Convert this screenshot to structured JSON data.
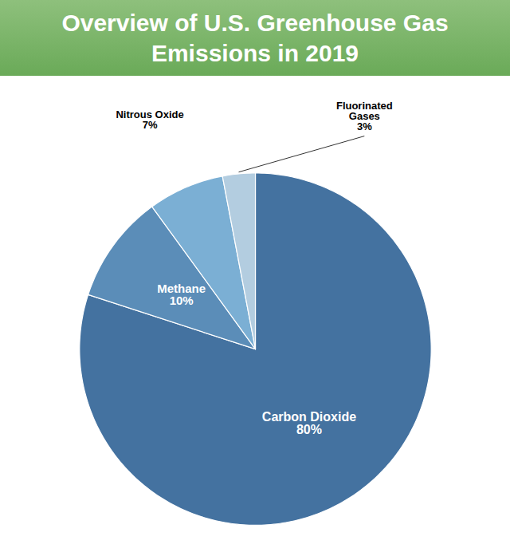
{
  "chart_data": {
    "type": "pie",
    "title": "Overview of U.S. Greenhouse Gas\nEmissions in 2019",
    "categories": [
      "Carbon Dioxide",
      "Methane",
      "Nitrous Oxide",
      "Fluorinated\nGases"
    ],
    "values": [
      80,
      10,
      7,
      3
    ],
    "value_labels": [
      "80%",
      "10%",
      "7%",
      "3%"
    ],
    "colors": [
      "#4472a0",
      "#5b8db8",
      "#7bafd4",
      "#b3cde0"
    ],
    "data_labels": true
  }
}
